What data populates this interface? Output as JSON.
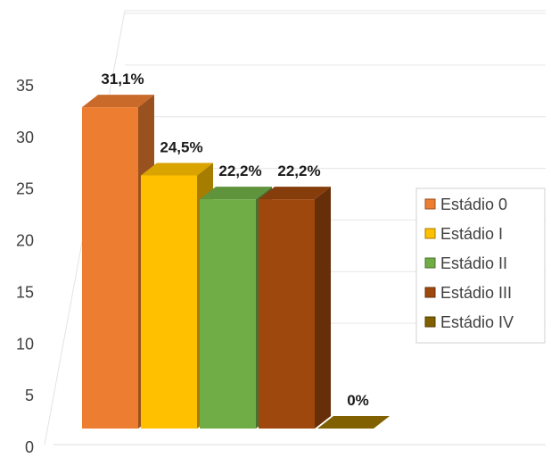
{
  "chart_data": {
    "type": "bar",
    "categories": [
      "Estádio 0",
      "Estádio I",
      "Estádio II",
      "Estádio III",
      "Estádio IV"
    ],
    "values": [
      31.1,
      24.5,
      22.2,
      22.2,
      0
    ],
    "data_labels": [
      "31,1%",
      "24,5%",
      "22,2%",
      "22,2%",
      "0%"
    ],
    "colors": [
      "#ED7D31",
      "#FFC000",
      "#70AD47",
      "#9E480E",
      "#806000"
    ],
    "yticks": [
      "0",
      "5",
      "10",
      "15",
      "20",
      "25",
      "30",
      "35"
    ],
    "ylim": [
      0,
      35
    ],
    "grid": true,
    "legend_position": "right",
    "title": "",
    "xlabel": "",
    "ylabel": ""
  }
}
